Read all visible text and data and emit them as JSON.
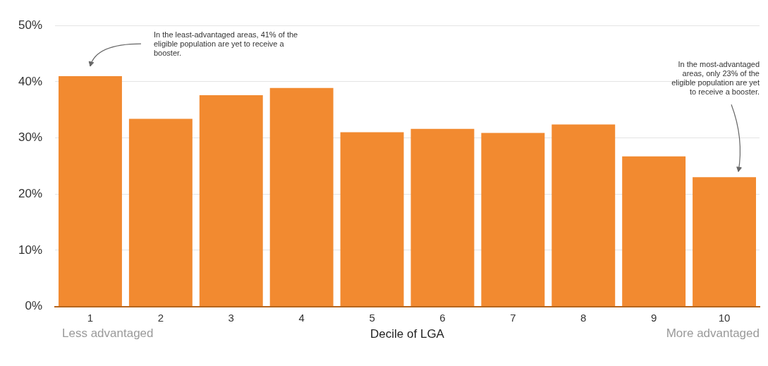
{
  "chart_data": {
    "type": "bar",
    "xlabel": "Decile of LGA",
    "categories": [
      "1",
      "2",
      "3",
      "4",
      "5",
      "6",
      "7",
      "8",
      "9",
      "10"
    ],
    "values": [
      41,
      33.4,
      37.6,
      38.9,
      31.0,
      31.6,
      30.9,
      32.4,
      26.7,
      23
    ],
    "color": "#f28a30",
    "ylim": [
      0,
      50
    ],
    "yticks": [
      {
        "value": 0,
        "label": "0%"
      },
      {
        "value": 10,
        "label": "10%"
      },
      {
        "value": 20,
        "label": "20%"
      },
      {
        "value": 30,
        "label": "30%"
      },
      {
        "value": 40,
        "label": "40%"
      },
      {
        "value": 50,
        "label": "50%"
      }
    ],
    "grid": "y",
    "legend": false,
    "annotations": [
      "In the least-advantaged areas, 41% of the eligible population are yet to receive a booster.",
      "In the most-advantaged areas, only 23% of the eligible population are yet to receive a booster.",
      "Less advantaged",
      "More advantaged"
    ]
  }
}
